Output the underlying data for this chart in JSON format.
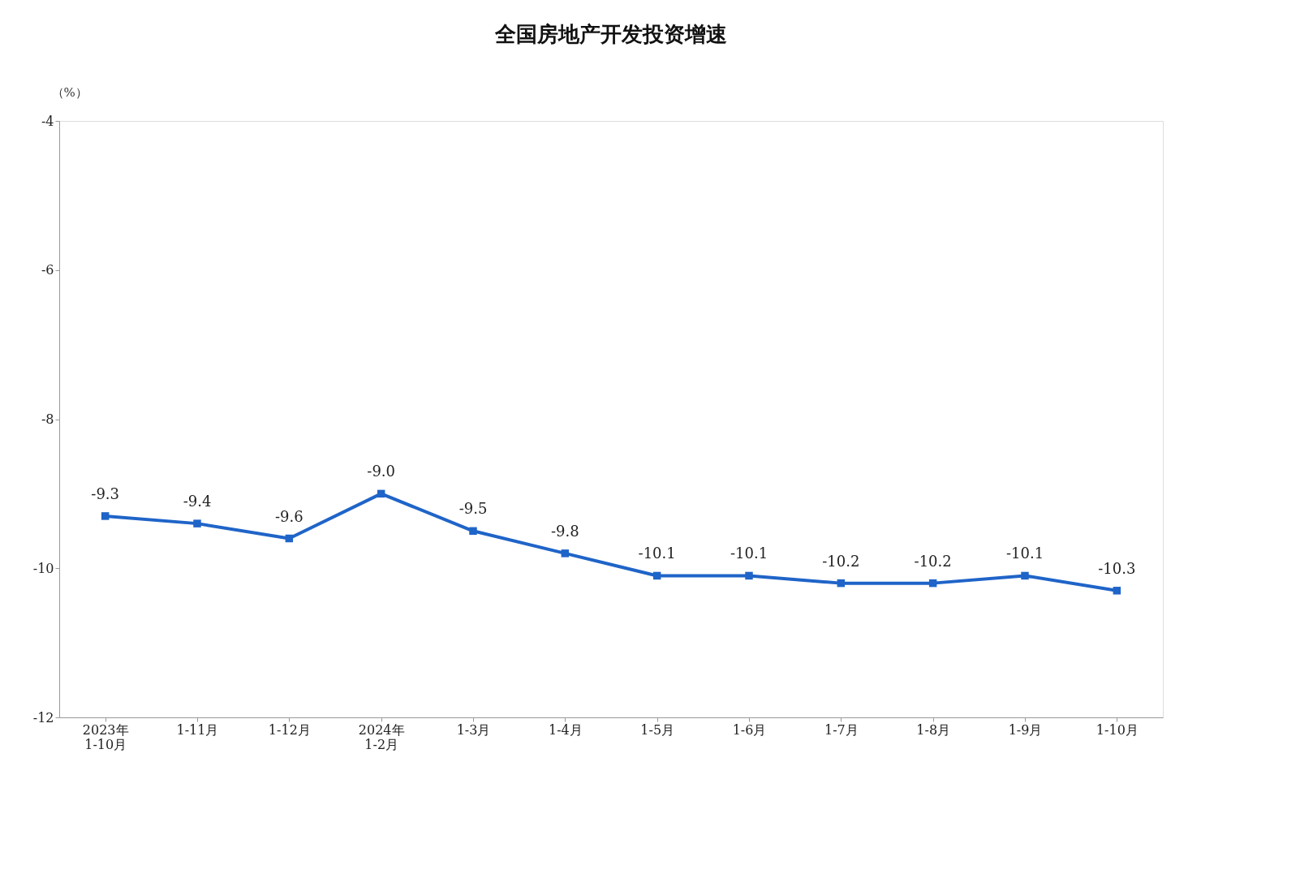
{
  "chart_data": {
    "type": "line",
    "title": "全国房地产开发投资增速",
    "ylabel": "（%）",
    "categories": [
      "2023年\n1-10月",
      "1-11月",
      "1-12月",
      "2024年\n1-2月",
      "1-3月",
      "1-4月",
      "1-5月",
      "1-6月",
      "1-7月",
      "1-8月",
      "1-9月",
      "1-10月"
    ],
    "series": [
      {
        "color": "#1f64c8",
        "values": [
          -9.3,
          -9.4,
          -9.6,
          -9.0,
          -9.5,
          -9.8,
          -10.1,
          -10.1,
          -10.2,
          -10.2,
          -10.1,
          -10.3
        ],
        "value_labels": [
          "-9.3",
          "-9.4",
          "-9.6",
          "-9.0",
          "-9.5",
          "-9.8",
          "-10.1",
          "-10.1",
          "-10.2",
          "-10.2",
          "-10.1",
          "-10.3"
        ]
      }
    ],
    "ylim": [
      -12,
      -4
    ],
    "yticks": [
      -12,
      -10,
      -8,
      -6,
      -4
    ],
    "grid": false,
    "marker": "square",
    "line_style": "solid"
  }
}
